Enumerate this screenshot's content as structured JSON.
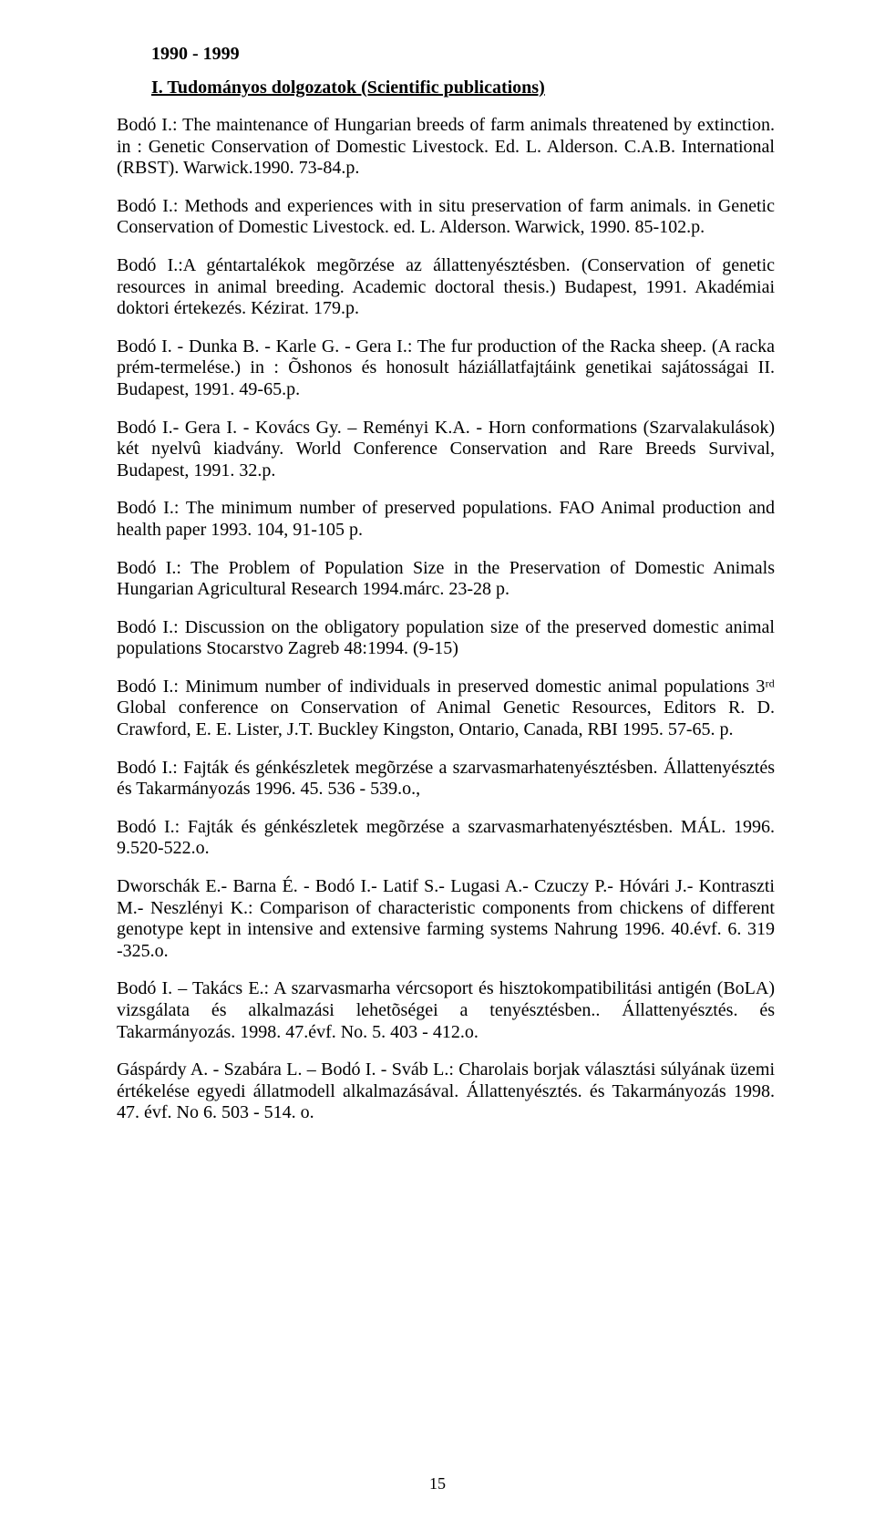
{
  "year_heading": "1990 - 1999",
  "section_heading": "I.   Tudományos dolgozatok (Scientific publications)",
  "entries": [
    "Bodó I.: The maintenance of Hungarian breeds of farm animals threatened by extinction. in : Genetic Conservation of Domestic Livestock. Ed. L. Alderson. C.A.B. International (RBST). Warwick.1990. 73-84.p.",
    "Bodó I.: Methods and experiences with in situ preservation of farm animals. in Genetic Conservation of Domestic Livestock. ed. L. Alderson. Warwick, 1990. 85-102.p.",
    "Bodó I.:A géntartalékok megõrzése az állattenyésztésben. (Conservation of genetic resources in animal breeding. Academic doctoral thesis.) Budapest, 1991. Akadémiai doktori értekezés. Kézirat. 179.p.",
    "Bodó I. - Dunka B. - Karle G. - Gera I.: The fur production of the Racka sheep. (A racka prém-termelése.) in : Õshonos és honosult háziállatfajtáink genetikai sajátosságai II. Budapest, 1991. 49-65.p.",
    "Bodó I.- Gera I. - Kovács Gy. – Reményi K.A. - Horn conformations (Szarvalakulások) két nyelvû kiadvány. World Conference Conservation and Rare Breeds Survival, Budapest, 1991. 32.p.",
    "Bodó I.: The minimum number of preserved populations. FAO Animal production and health paper 1993. 104, 91-105 p.",
    "Bodó I.: The Problem of Population Size in the Preservation of Domestic Animals Hungarian Agricultural Research 1994.márc. 23-28 p.",
    "Bodó I.:   Discussion on the obligatory population size of the preserved domestic animal populations Stocarstvo Zagreb 48:1994. (9-15)",
    "Bodó I.: Minimum number of individuals in preserved domestic animal populations 3ʳᵈ Global conference on Conservation of Animal Genetic Resources, Editors R. D. Crawford, E. E. Lister, J.T. Buckley Kingston, Ontario, Canada, RBI 1995. 57-65. p.",
    "Bodó I.: Fajták és génkészletek megõrzése a szarvasmarhatenyésztésben. Állattenyésztés és Takarmányozás 1996. 45. 536 - 539.o.,",
    "Bodó I.:  Fajták és génkészletek megõrzése a szarvasmarhatenyésztésben. MÁL. 1996. 9.520-522.o.",
    "Dworschák E.- Barna É. - Bodó I.- Latif S.- Lugasi A.- Czuczy P.- Hóvári J.- Kontraszti M.- Neszlényi K.: Comparison of characteristic components from chickens of different genotype kept in intensive and extensive farming systems Nahrung 1996. 40.évf. 6. 319 -325.o.",
    "Bodó I. – Takács E.: A szarvasmarha vércsoport és hisztokompatibilitási antigén (BoLA) vizsgálata és alkalmazási lehetõségei a tenyésztésben.. Állattenyésztés. és Takarmányozás. 1998. 47.évf. No. 5. 403 - 412.o.",
    "Gáspárdy A. - Szabára L. – Bodó I. - Sváb L.: Charolais borjak választási súlyának üzemi értékelése egyedi állatmodell alkalmazásával. Állattenyésztés. és Takarmányozás 1998. 47. évf. No 6. 503 - 514. o."
  ],
  "page_number": "15"
}
